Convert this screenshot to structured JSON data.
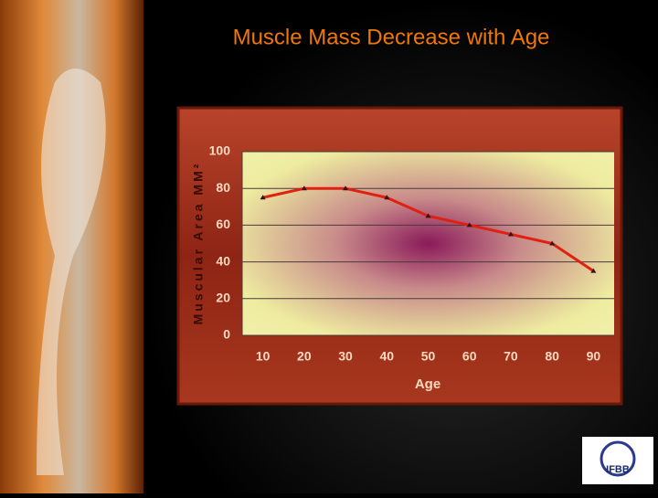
{
  "chart_data": {
    "type": "line",
    "title": "Muscle Mass Decrease with Age",
    "x_label": "Age",
    "y_label": "Muscular Area MM²",
    "categories": [
      "10",
      "20",
      "30",
      "40",
      "50",
      "60",
      "70",
      "80",
      "90"
    ],
    "values": [
      75,
      80,
      80,
      75,
      65,
      60,
      55,
      50,
      35
    ],
    "color": "#e02010",
    "ylim": [
      0,
      100
    ],
    "yticks": [
      0,
      20,
      40,
      60,
      80,
      100
    ],
    "grid": true
  },
  "logo": "IFBB"
}
